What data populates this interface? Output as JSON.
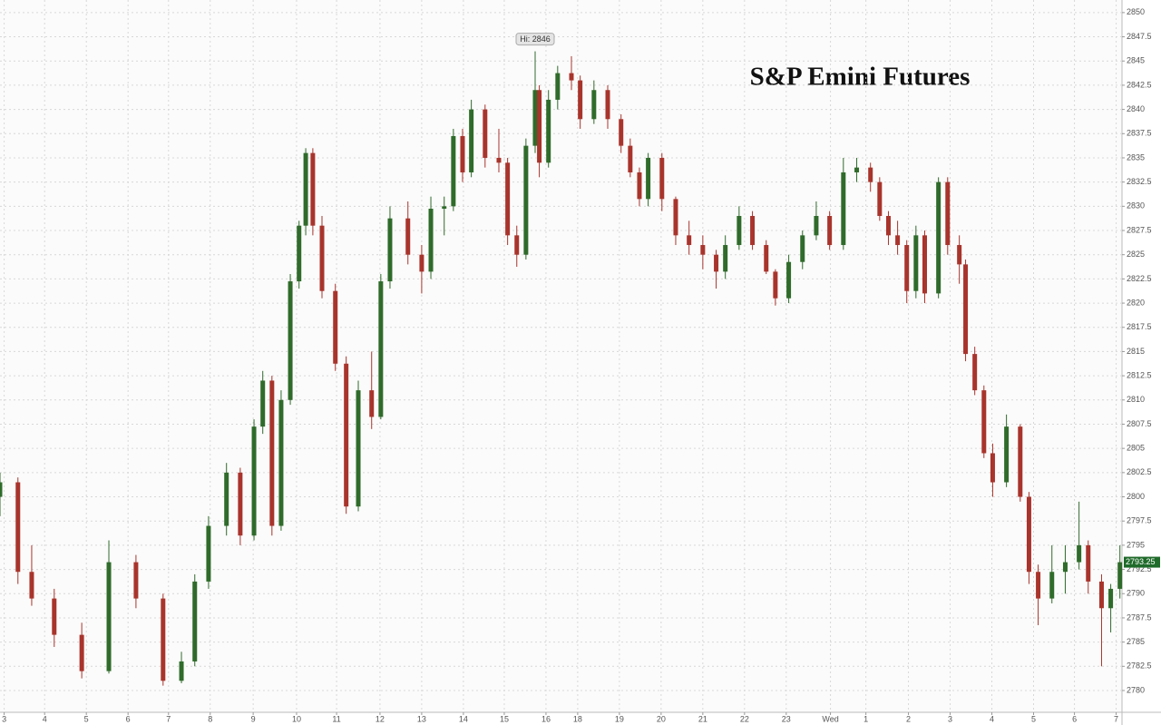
{
  "chart_data": {
    "type": "candlestick",
    "title": "S&P Emini Futures",
    "annotations": [
      {
        "text": "Hi: 2846"
      }
    ],
    "up_color": "#2f6b2a",
    "down_color": "#a8342c",
    "grid": true,
    "x": [
      0,
      0.43,
      0.76,
      1.3,
      1.96,
      2.61,
      3.26,
      3.91,
      4.35,
      4.67,
      5.0,
      5.43,
      5.76,
      6.09,
      6.3,
      6.52,
      6.74,
      6.96,
      7.17,
      7.33,
      7.5,
      7.72,
      8.04,
      8.3,
      8.59,
      8.91,
      9.13,
      9.35,
      9.78,
      10.11,
      10.33,
      10.65,
      10.87,
      11.09,
      11.3,
      11.63,
      11.96,
      12.17,
      12.39,
      12.61,
      12.83,
      12.93,
      13.15,
      13.37,
      13.7,
      13.91,
      14.24,
      14.57,
      14.89,
      15.11,
      15.33,
      15.54,
      15.87,
      16.2,
      16.52,
      16.85,
      17.17,
      17.39,
      17.72,
      18.04,
      18.37,
      18.59,
      18.91,
      19.24,
      19.57,
      19.89,
      20.22,
      20.54,
      20.87,
      21.09,
      21.3,
      21.52,
      21.74,
      21.96,
      22.17,
      22.5,
      22.72,
      23.0,
      23.15,
      23.37,
      23.59,
      23.8,
      24.13,
      24.46,
      24.67,
      24.89,
      25.22,
      25.54,
      25.87,
      26.09,
      26.41,
      26.63,
      26.85
    ],
    "open": [
      2800,
      2801.5,
      2792.25,
      2789.5,
      2785.75,
      2782,
      2793.25,
      2789.5,
      2781,
      2783,
      2791.25,
      2797,
      2802.5,
      2796,
      2807.25,
      2812,
      2797,
      2810,
      2822.25,
      2828,
      2835.5,
      2828,
      2821.25,
      2813.75,
      2799,
      2811,
      2808.25,
      2822.25,
      2828.75,
      2825,
      2823.25,
      2829.75,
      2830,
      2837.25,
      2833.5,
      2840,
      2835,
      2834.5,
      2827,
      2825,
      2836.25,
      2842,
      2834.5,
      2841,
      2843.75,
      2843,
      2839,
      2842,
      2839,
      2836.25,
      2833.5,
      2830.75,
      2835,
      2830.75,
      2827,
      2826,
      2825,
      2823.25,
      2826,
      2829,
      2826,
      2823.25,
      2820.5,
      2824.25,
      2827,
      2829,
      2826,
      2833.5,
      2834,
      2832.5,
      2829,
      2827,
      2826,
      2821.25,
      2827,
      2821,
      2832.5,
      2826,
      2824,
      2814.75,
      2811,
      2804.5,
      2801.5,
      2807.25,
      2800,
      2792.25,
      2789.5,
      2792.25,
      2793.25,
      2795,
      2791.25,
      2788.5,
      2790.5
    ],
    "high": [
      2802.5,
      2802,
      2795,
      2790.5,
      2787,
      2795.5,
      2794,
      2790,
      2784,
      2792,
      2798,
      2803.5,
      2803,
      2808,
      2813,
      2812.5,
      2811,
      2823,
      2828.5,
      2836,
      2836,
      2829,
      2822,
      2814.5,
      2812,
      2815,
      2823,
      2830,
      2830.5,
      2826,
      2831,
      2831,
      2838,
      2838,
      2841,
      2840.5,
      2838,
      2835,
      2828,
      2837,
      2846,
      2842.5,
      2842,
      2844.5,
      2845.5,
      2843.5,
      2843,
      2842.5,
      2839.5,
      2837,
      2834,
      2835.5,
      2835.5,
      2831,
      2828.5,
      2827,
      2825.5,
      2827,
      2830,
      2829.5,
      2826.5,
      2823.5,
      2825,
      2827.5,
      2830.5,
      2829.5,
      2835,
      2835,
      2834.5,
      2833,
      2829.5,
      2828.5,
      2826.5,
      2828,
      2827.5,
      2833,
      2833,
      2827,
      2824.5,
      2815.5,
      2811.5,
      2805.5,
      2808.5,
      2807.5,
      2800.5,
      2793,
      2795,
      2795,
      2799.5,
      2795.5,
      2792,
      2791,
      2795
    ],
    "low": [
      2798,
      2791,
      2788.75,
      2784.5,
      2781.25,
      2781.75,
      2788.5,
      2780.5,
      2780.75,
      2782.5,
      2790.5,
      2796,
      2795,
      2795.5,
      2806.5,
      2796,
      2796.5,
      2809.5,
      2821.5,
      2827,
      2827,
      2820.5,
      2813,
      2798.25,
      2798.5,
      2807,
      2808,
      2821.5,
      2824,
      2821,
      2822.5,
      2827,
      2829.5,
      2832.5,
      2833,
      2834,
      2833.5,
      2826,
      2823.75,
      2824.5,
      2835.5,
      2833,
      2834,
      2840,
      2842,
      2838,
      2838.5,
      2838,
      2835.5,
      2833,
      2830,
      2830,
      2829.5,
      2826,
      2825,
      2823.5,
      2821.5,
      2822.5,
      2825.5,
      2825.5,
      2823,
      2819.75,
      2820,
      2823.5,
      2826.5,
      2825.5,
      2825.5,
      2832.5,
      2831.5,
      2828.5,
      2826,
      2825,
      2820,
      2820.5,
      2820,
      2820.5,
      2825,
      2822,
      2814,
      2810.5,
      2804,
      2800,
      2801,
      2799.5,
      2791,
      2786.75,
      2789,
      2790,
      2792.5,
      2790,
      2782.5,
      2786,
      2789.5
    ],
    "close": [
      2801.5,
      2792.25,
      2789.5,
      2785.75,
      2782,
      2793.25,
      2789.5,
      2781,
      2783,
      2791.25,
      2797,
      2802.5,
      2796,
      2807.25,
      2812,
      2797,
      2810,
      2822.25,
      2828,
      2835.5,
      2828,
      2821.25,
      2813.75,
      2799,
      2811,
      2808.25,
      2822.25,
      2828.75,
      2825,
      2823.25,
      2829.75,
      2830,
      2837.25,
      2833.5,
      2840,
      2835,
      2834.5,
      2827,
      2825,
      2836.25,
      2842,
      2834.5,
      2841,
      2843.75,
      2843,
      2839,
      2842,
      2839,
      2836.25,
      2833.5,
      2830.75,
      2835,
      2830.75,
      2827,
      2826,
      2825,
      2823.25,
      2826,
      2829,
      2826,
      2823.25,
      2820.5,
      2824.25,
      2827,
      2829,
      2826,
      2833.5,
      2834,
      2832.5,
      2829,
      2827,
      2826,
      2821.25,
      2827,
      2821,
      2832.5,
      2826,
      2824,
      2814.75,
      2811,
      2804.5,
      2801.5,
      2807.25,
      2800,
      2792.25,
      2789.5,
      2792.25,
      2793.25,
      2795,
      2791.25,
      2788.5,
      2790.5,
      2793.25
    ],
    "xlim": [
      0,
      26.9
    ],
    "xticks": [
      {
        "value": 0.1,
        "label": "3"
      },
      {
        "value": 1.07,
        "label": "4"
      },
      {
        "value": 2.07,
        "label": "5"
      },
      {
        "value": 3.07,
        "label": "6"
      },
      {
        "value": 4.04,
        "label": "7"
      },
      {
        "value": 5.04,
        "label": "8"
      },
      {
        "value": 6.07,
        "label": "9"
      },
      {
        "value": 7.11,
        "label": "10"
      },
      {
        "value": 8.07,
        "label": "11"
      },
      {
        "value": 9.11,
        "label": "12"
      },
      {
        "value": 10.11,
        "label": "13"
      },
      {
        "value": 11.11,
        "label": "14"
      },
      {
        "value": 12.09,
        "label": "15"
      },
      {
        "value": 13.09,
        "label": "16"
      },
      {
        "value": 13.85,
        "label": "18"
      },
      {
        "value": 14.85,
        "label": "19"
      },
      {
        "value": 15.85,
        "label": "20"
      },
      {
        "value": 16.85,
        "label": "21"
      },
      {
        "value": 17.85,
        "label": "22"
      },
      {
        "value": 18.85,
        "label": "23"
      },
      {
        "value": 19.91,
        "label": "Wed"
      },
      {
        "value": 20.76,
        "label": "1"
      },
      {
        "value": 21.78,
        "label": "2"
      },
      {
        "value": 22.78,
        "label": "3"
      },
      {
        "value": 23.78,
        "label": "4"
      },
      {
        "value": 24.78,
        "label": "5"
      },
      {
        "value": 25.76,
        "label": "6"
      },
      {
        "value": 26.76,
        "label": "7"
      }
    ],
    "ylim": [
      2777.75,
      2851.3
    ],
    "yticks": [
      2780,
      2782.5,
      2785,
      2787.5,
      2790,
      2792.5,
      2795,
      2797.5,
      2800,
      2802.5,
      2805,
      2807.5,
      2810,
      2812.5,
      2815,
      2817.5,
      2820,
      2822.5,
      2825,
      2827.5,
      2830,
      2832.5,
      2835,
      2837.5,
      2840,
      2842.5,
      2845,
      2847.5,
      2850
    ]
  }
}
